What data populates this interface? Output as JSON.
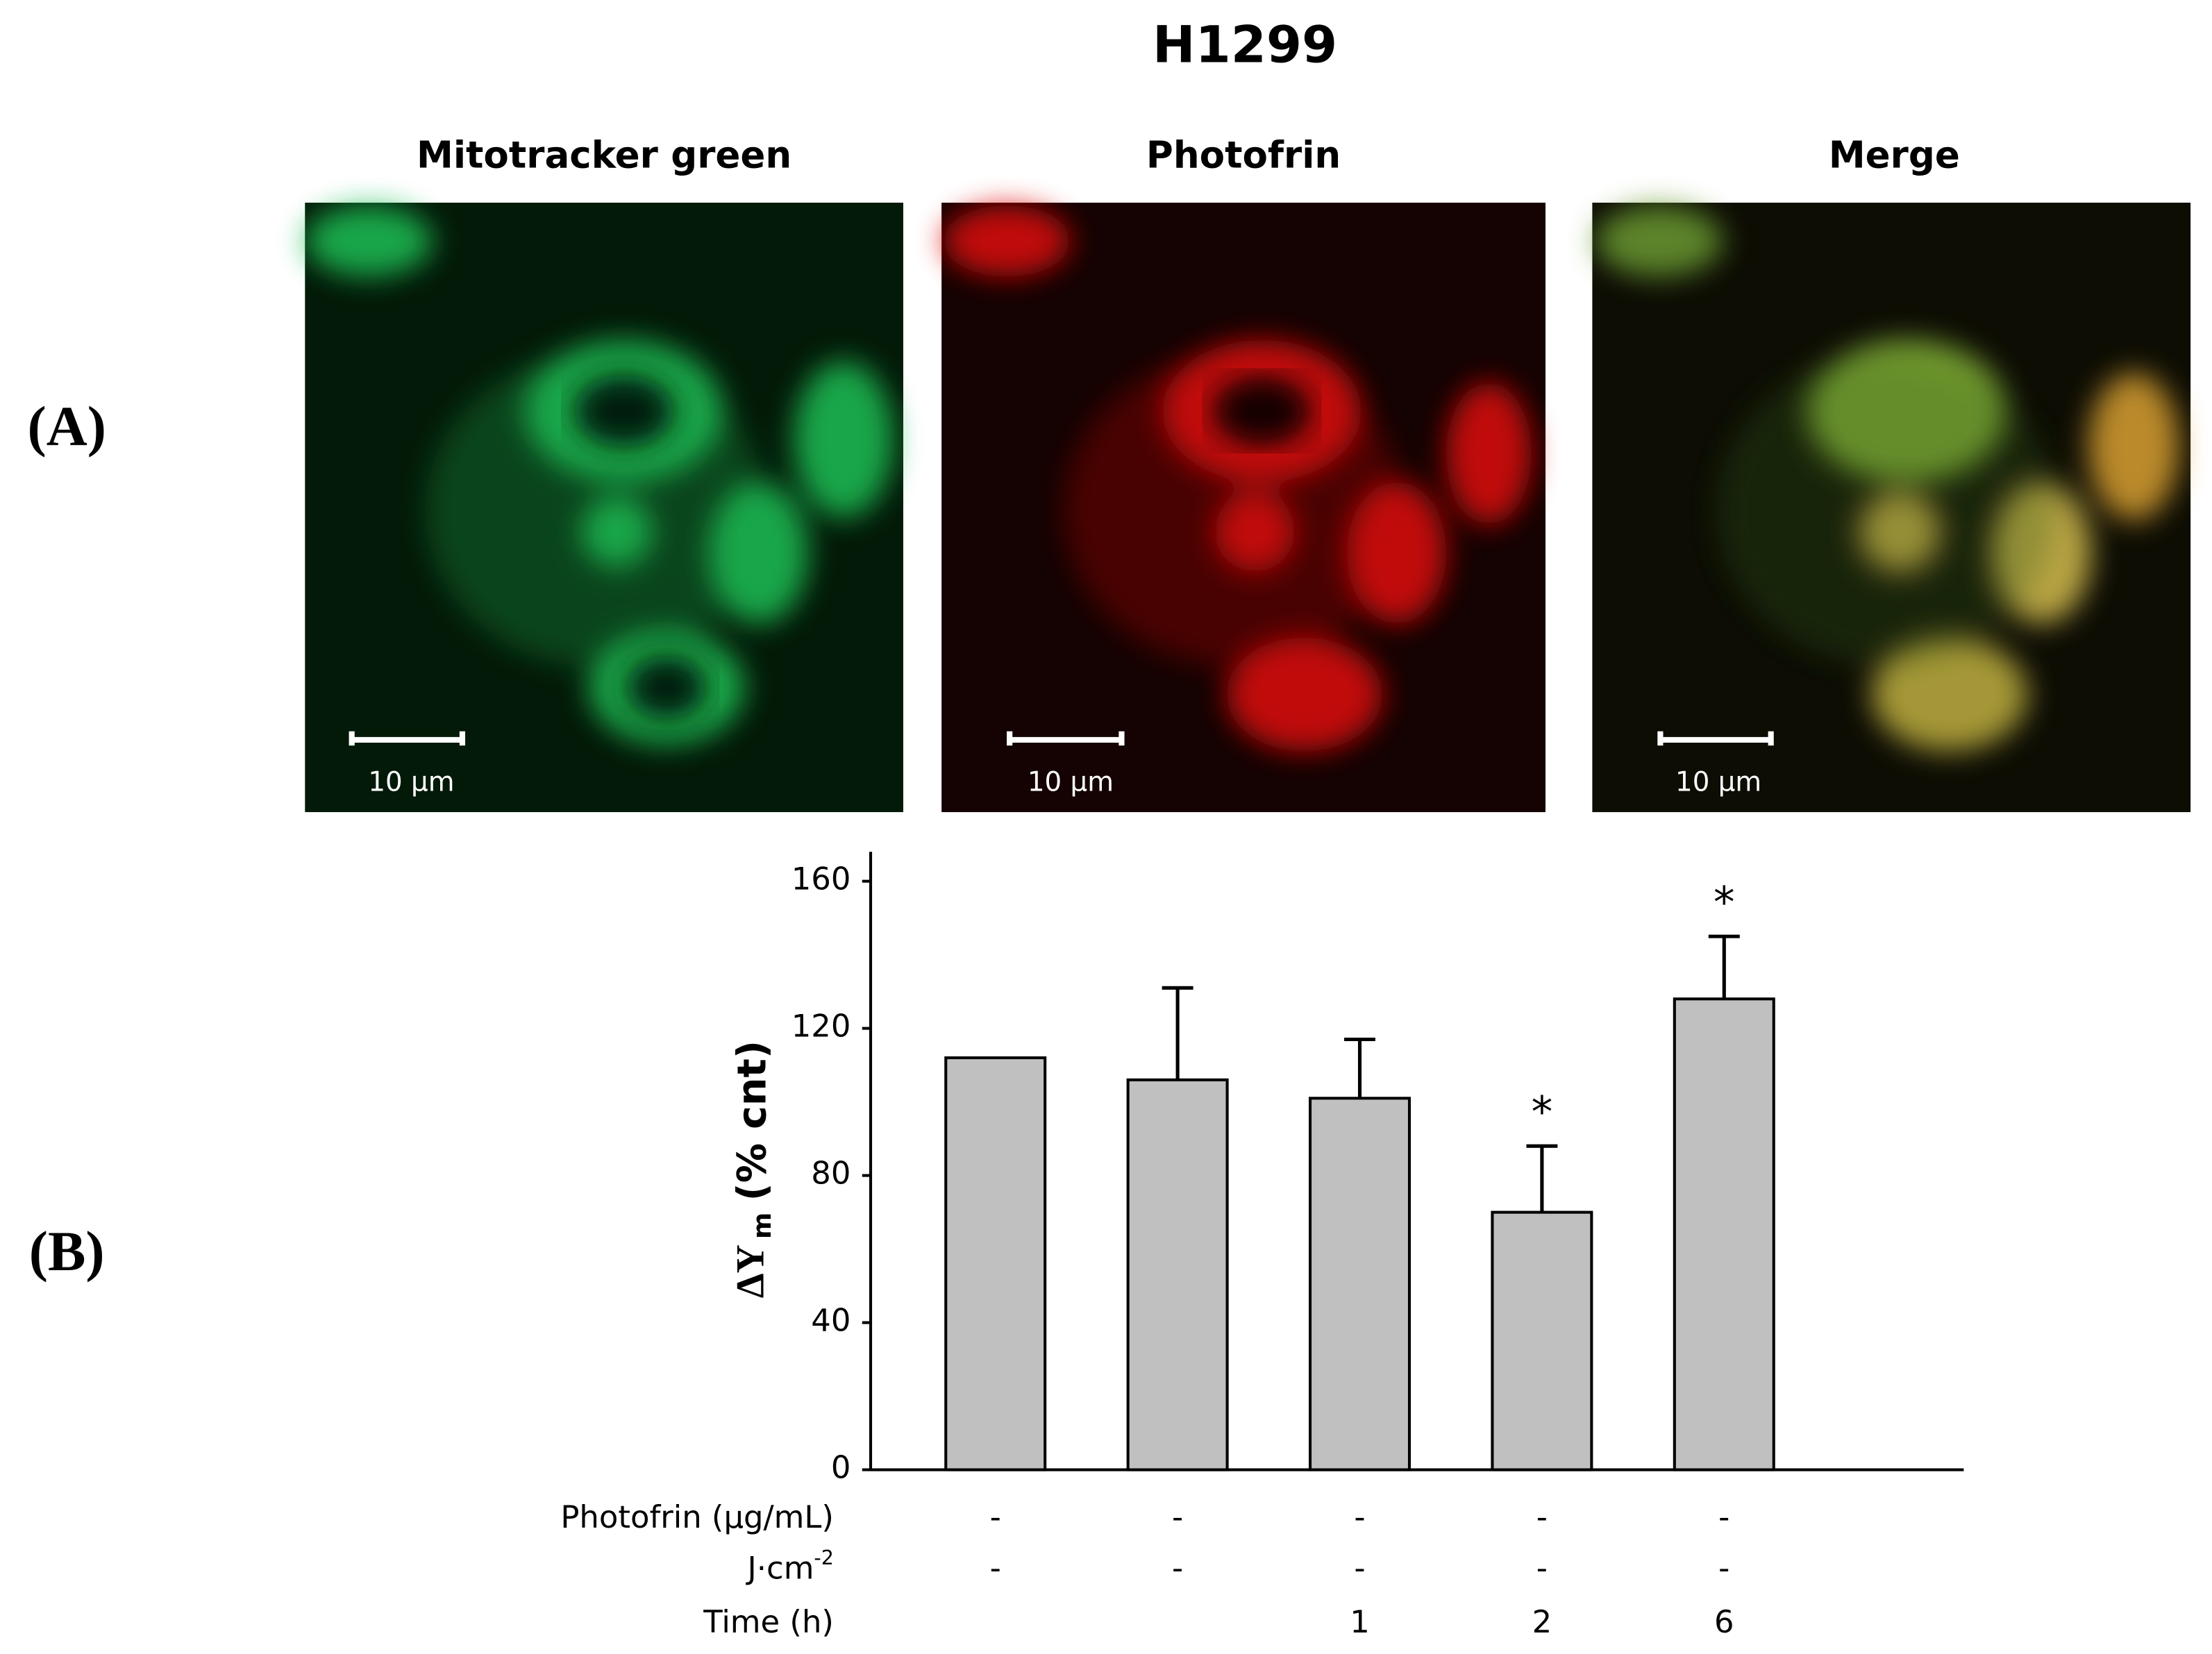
{
  "title": "H1299",
  "panel_labels": [
    "(A)",
    "(B)"
  ],
  "images": [
    {
      "title": "Mitotracker green",
      "scale_bar": "10 µm"
    },
    {
      "title": "Photofrin",
      "scale_bar": "10 µm"
    },
    {
      "title": "Merge",
      "scale_bar": "10 µm"
    }
  ],
  "chart_data": {
    "type": "bar",
    "ylabel": {
      "symbol": "ΔY",
      "subscript": "m",
      "unit": "(% cnt)"
    },
    "values": [
      112,
      106,
      101,
      70,
      128
    ],
    "errors": [
      null,
      25,
      16,
      18,
      17
    ],
    "annotations": [
      null,
      null,
      null,
      "*",
      "*"
    ],
    "color": "#c0c0c0",
    "ylim": [
      0,
      168
    ],
    "yticks": [
      0,
      40,
      80,
      120,
      160
    ],
    "condition_rows": [
      {
        "label": "Photofrin (µg/mL)",
        "values": [
          "-",
          "-",
          "-",
          "-",
          "-"
        ]
      },
      {
        "label": "J·cm",
        "label_sup": "-2",
        "values": [
          "-",
          "-",
          "-",
          "-",
          "-"
        ]
      },
      {
        "label": "Time (h)",
        "values": [
          null,
          null,
          1,
          2,
          6
        ]
      }
    ]
  }
}
